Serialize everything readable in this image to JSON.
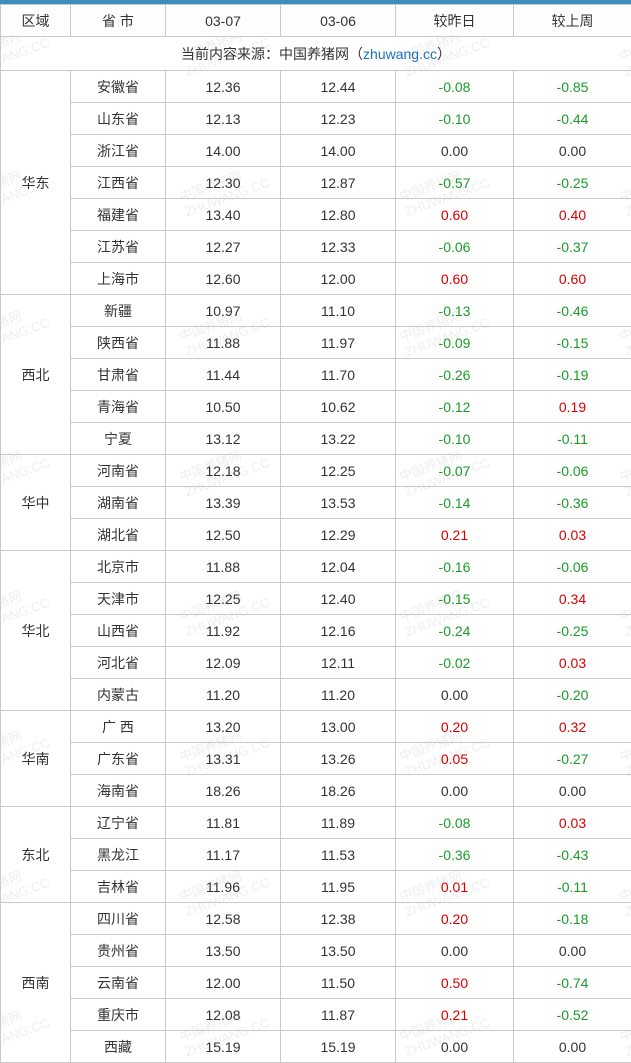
{
  "watermark": {
    "line1": "中国养猪网",
    "line2": "ZHUWANG.CC"
  },
  "headers": {
    "region": "区域",
    "province": "省 市",
    "date1": "03-07",
    "date2": "03-06",
    "delta_day": "较昨日",
    "delta_week": "较上周"
  },
  "source": {
    "prefix": "当前内容来源：中国养猪网（",
    "link": "zhuwang.cc",
    "suffix": "）"
  },
  "colors": {
    "border": "#c9c9c9",
    "header_top": "#3c8dbc",
    "text": "#333333",
    "negative": "#1a9b28",
    "positive": "#d90000",
    "link": "#1e6fbf"
  },
  "regions": [
    {
      "name": "华东",
      "rows": [
        {
          "prov": "安徽省",
          "d1": "12.36",
          "d2": "12.44",
          "dd": "-0.08",
          "dw": "-0.85"
        },
        {
          "prov": "山东省",
          "d1": "12.13",
          "d2": "12.23",
          "dd": "-0.10",
          "dw": "-0.44"
        },
        {
          "prov": "浙江省",
          "d1": "14.00",
          "d2": "14.00",
          "dd": "0.00",
          "dw": "0.00"
        },
        {
          "prov": "江西省",
          "d1": "12.30",
          "d2": "12.87",
          "dd": "-0.57",
          "dw": "-0.25"
        },
        {
          "prov": "福建省",
          "d1": "13.40",
          "d2": "12.80",
          "dd": "0.60",
          "dw": "0.40"
        },
        {
          "prov": "江苏省",
          "d1": "12.27",
          "d2": "12.33",
          "dd": "-0.06",
          "dw": "-0.37"
        },
        {
          "prov": "上海市",
          "d1": "12.60",
          "d2": "12.00",
          "dd": "0.60",
          "dw": "0.60"
        }
      ]
    },
    {
      "name": "西北",
      "rows": [
        {
          "prov": "新疆",
          "d1": "10.97",
          "d2": "11.10",
          "dd": "-0.13",
          "dw": "-0.46"
        },
        {
          "prov": "陕西省",
          "d1": "11.88",
          "d2": "11.97",
          "dd": "-0.09",
          "dw": "-0.15"
        },
        {
          "prov": "甘肃省",
          "d1": "11.44",
          "d2": "11.70",
          "dd": "-0.26",
          "dw": "-0.19"
        },
        {
          "prov": "青海省",
          "d1": "10.50",
          "d2": "10.62",
          "dd": "-0.12",
          "dw": "0.19"
        },
        {
          "prov": "宁夏",
          "d1": "13.12",
          "d2": "13.22",
          "dd": "-0.10",
          "dw": "-0.11"
        }
      ]
    },
    {
      "name": "华中",
      "rows": [
        {
          "prov": "河南省",
          "d1": "12.18",
          "d2": "12.25",
          "dd": "-0.07",
          "dw": "-0.06"
        },
        {
          "prov": "湖南省",
          "d1": "13.39",
          "d2": "13.53",
          "dd": "-0.14",
          "dw": "-0.36"
        },
        {
          "prov": "湖北省",
          "d1": "12.50",
          "d2": "12.29",
          "dd": "0.21",
          "dw": "0.03"
        }
      ]
    },
    {
      "name": "华北",
      "rows": [
        {
          "prov": "北京市",
          "d1": "11.88",
          "d2": "12.04",
          "dd": "-0.16",
          "dw": "-0.06"
        },
        {
          "prov": "天津市",
          "d1": "12.25",
          "d2": "12.40",
          "dd": "-0.15",
          "dw": "0.34"
        },
        {
          "prov": "山西省",
          "d1": "11.92",
          "d2": "12.16",
          "dd": "-0.24",
          "dw": "-0.25"
        },
        {
          "prov": "河北省",
          "d1": "12.09",
          "d2": "12.11",
          "dd": "-0.02",
          "dw": "0.03"
        },
        {
          "prov": "内蒙古",
          "d1": "11.20",
          "d2": "11.20",
          "dd": "0.00",
          "dw": "-0.20"
        }
      ]
    },
    {
      "name": "华南",
      "rows": [
        {
          "prov": "广 西",
          "d1": "13.20",
          "d2": "13.00",
          "dd": "0.20",
          "dw": "0.32"
        },
        {
          "prov": "广东省",
          "d1": "13.31",
          "d2": "13.26",
          "dd": "0.05",
          "dw": "-0.27"
        },
        {
          "prov": "海南省",
          "d1": "18.26",
          "d2": "18.26",
          "dd": "0.00",
          "dw": "0.00"
        }
      ]
    },
    {
      "name": "东北",
      "rows": [
        {
          "prov": "辽宁省",
          "d1": "11.81",
          "d2": "11.89",
          "dd": "-0.08",
          "dw": "0.03"
        },
        {
          "prov": "黑龙江",
          "d1": "11.17",
          "d2": "11.53",
          "dd": "-0.36",
          "dw": "-0.43"
        },
        {
          "prov": "吉林省",
          "d1": "11.96",
          "d2": "11.95",
          "dd": "0.01",
          "dw": "-0.11"
        }
      ]
    },
    {
      "name": "西南",
      "rows": [
        {
          "prov": "四川省",
          "d1": "12.58",
          "d2": "12.38",
          "dd": "0.20",
          "dw": "-0.18"
        },
        {
          "prov": "贵州省",
          "d1": "13.50",
          "d2": "13.50",
          "dd": "0.00",
          "dw": "0.00"
        },
        {
          "prov": "云南省",
          "d1": "12.00",
          "d2": "11.50",
          "dd": "0.50",
          "dw": "-0.74"
        },
        {
          "prov": "重庆市",
          "d1": "12.08",
          "d2": "11.87",
          "dd": "0.21",
          "dw": "-0.52"
        },
        {
          "prov": "西藏",
          "d1": "15.19",
          "d2": "15.19",
          "dd": "0.00",
          "dw": "0.00"
        }
      ]
    }
  ]
}
